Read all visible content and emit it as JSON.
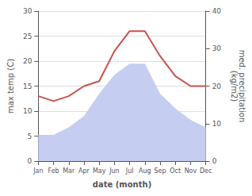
{
  "chart_data": {
    "type": "line",
    "categories": [
      "Jan",
      "Feb",
      "Mar",
      "Apr",
      "May",
      "Jun",
      "Jul",
      "Aug",
      "Sep",
      "Oct",
      "Nov",
      "Dec"
    ],
    "xlabel": "date (month)",
    "ylabel": "max temp (C)",
    "y2label": "med. precipitation\n(kg/m2)",
    "ylim": [
      0,
      30
    ],
    "yticks": [
      0,
      5,
      10,
      15,
      20,
      25,
      30
    ],
    "y2lim": [
      0,
      40
    ],
    "y2ticks": [
      0,
      10,
      20,
      30,
      40
    ],
    "grid": true,
    "series": [
      {
        "type": "area",
        "axis": "y2",
        "color": "#c5cef0",
        "values": [
          7,
          7,
          9,
          12,
          18,
          23,
          26,
          26,
          18,
          14,
          11,
          9
        ]
      },
      {
        "type": "line",
        "color": "#c8524a",
        "values": [
          13,
          12,
          13,
          15,
          16,
          22,
          26,
          26,
          21,
          17,
          15,
          15
        ]
      }
    ]
  }
}
